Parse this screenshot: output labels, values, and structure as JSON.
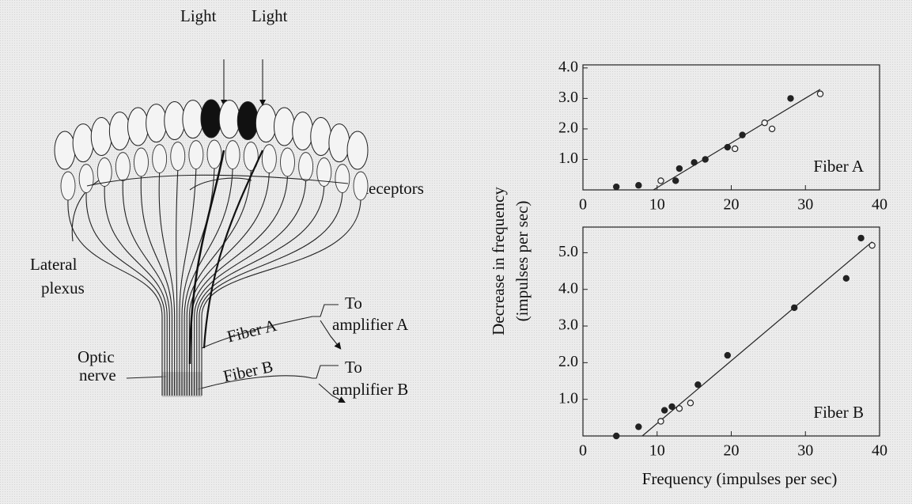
{
  "diagram": {
    "light_labels": [
      "Light",
      "Light"
    ],
    "receptors_label": "Receptors",
    "lateral_plexus_label": [
      "Lateral",
      "plexus"
    ],
    "optic_nerve_label": [
      "Optic",
      "nerve"
    ],
    "fiber_a_label": "Fiber A",
    "fiber_b_label": "Fiber B",
    "amplifier_a_label": [
      "To",
      "amplifier A"
    ],
    "amplifier_b_label": [
      "To",
      "amplifier B"
    ]
  },
  "axis_labels": {
    "y": [
      "Decrease in frequency",
      "(impulses per sec)"
    ],
    "x": "Frequency (impulses per sec)"
  },
  "chart_data": [
    {
      "type": "scatter",
      "annotation": "Fiber A",
      "xlim": [
        0,
        40
      ],
      "xticks": [
        0,
        10,
        20,
        30,
        40
      ],
      "ylim": [
        0,
        4.1
      ],
      "yticks": [
        {
          "value": 1,
          "label": "1.0"
        },
        {
          "value": 2,
          "label": "2.0"
        },
        {
          "value": 3,
          "label": "3.0"
        },
        {
          "value": 4,
          "label": "4.0"
        }
      ],
      "color": "#222222",
      "series": [
        {
          "style": "filled",
          "x": [
            4.5,
            7.5,
            12.5,
            13,
            15,
            16.5,
            19.5,
            21.5,
            28
          ],
          "values": [
            0.1,
            0.15,
            0.3,
            0.7,
            0.9,
            1.0,
            1.4,
            1.8,
            3.0
          ]
        },
        {
          "style": "open",
          "x": [
            10.5,
            20.5,
            24.5,
            25.5,
            32
          ],
          "values": [
            0.3,
            1.35,
            2.2,
            2.0,
            3.15
          ]
        }
      ],
      "fit_line": {
        "x": [
          9.5,
          32
        ],
        "values": [
          0,
          3.3
        ]
      }
    },
    {
      "type": "scatter",
      "annotation": "Fiber B",
      "xlim": [
        0,
        40
      ],
      "xticks": [
        0,
        10,
        20,
        30,
        40
      ],
      "ylim": [
        0,
        5.7
      ],
      "yticks": [
        {
          "value": 1,
          "label": "1.0"
        },
        {
          "value": 2,
          "label": "2.0"
        },
        {
          "value": 3,
          "label": "3.0"
        },
        {
          "value": 4,
          "label": "4.0"
        },
        {
          "value": 5,
          "label": "5.0"
        }
      ],
      "color": "#222222",
      "series": [
        {
          "style": "filled",
          "x": [
            4.5,
            7.5,
            11,
            12,
            15.5,
            19.5,
            28.5,
            35.5,
            37.5
          ],
          "values": [
            0,
            0.25,
            0.7,
            0.8,
            1.4,
            2.2,
            3.5,
            4.3,
            5.4
          ]
        },
        {
          "style": "open",
          "x": [
            10.5,
            13,
            14.5,
            39
          ],
          "values": [
            0.4,
            0.75,
            0.9,
            5.2
          ]
        }
      ],
      "fit_line": {
        "x": [
          8,
          39
        ],
        "values": [
          0,
          5.3
        ]
      }
    }
  ]
}
